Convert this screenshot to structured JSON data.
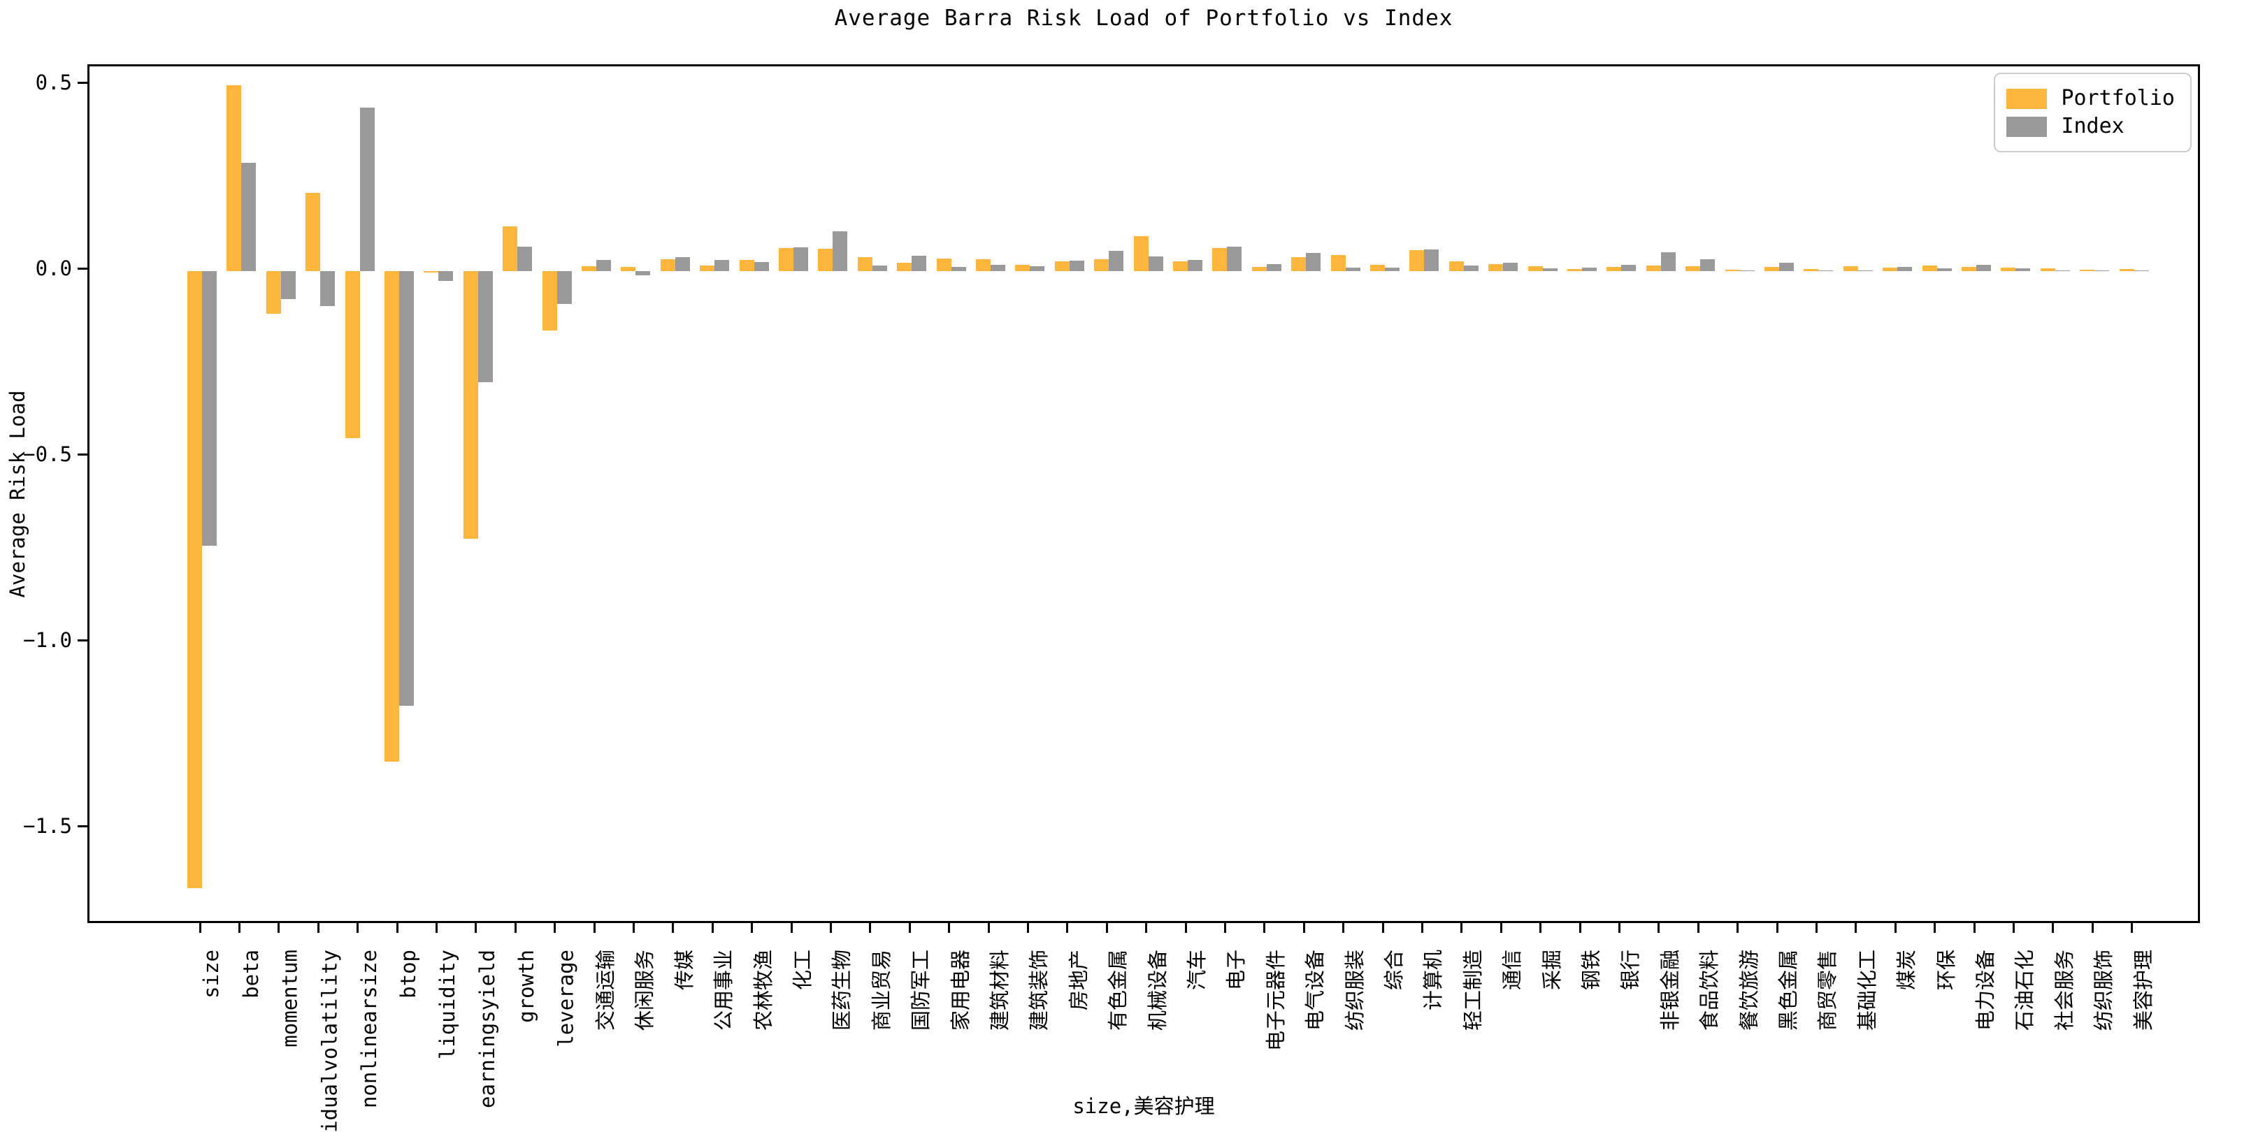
{
  "chart_data": {
    "type": "bar",
    "title": "Average Barra Risk Load of Portfolio vs Index",
    "xlabel": "size,美容护理",
    "ylabel": "Average Risk Load",
    "ylim": [
      -1.76,
      0.55
    ],
    "yticks": [
      0.5,
      0.0,
      -0.5,
      -1.0,
      -1.5
    ],
    "ytick_labels": [
      "0.5",
      "0.0",
      "−0.5",
      "−1.0",
      "−1.5"
    ],
    "grid": "off",
    "legend_position": "upper right",
    "bar_colors": {
      "portfolio": "#fdb53d",
      "index": "#999999"
    },
    "categories": [
      "size",
      "beta",
      "momentum",
      "residualvolatility",
      "nonlinearsize",
      "btop",
      "liquidity",
      "earningsyield",
      "growth",
      "leverage",
      "交通运输",
      "休闲服务",
      "传媒",
      "公用事业",
      "农林牧渔",
      "化工",
      "医药生物",
      "商业贸易",
      "国防军工",
      "家用电器",
      "建筑材料",
      "建筑装饰",
      "房地产",
      "有色金属",
      "机械设备",
      "汽车",
      "电子",
      "电子元器件",
      "电气设备",
      "纺织服装",
      "综合",
      "计算机",
      "轻工制造",
      "通信",
      "采掘",
      "钢铁",
      "银行",
      "非银金融",
      "食品饮料",
      "餐饮旅游",
      "黑色金属",
      "商贸零售",
      "基础化工",
      "煤炭",
      "环保",
      "电力设备",
      "石油石化",
      "社会服务",
      "纺织服饰",
      "美容护理"
    ],
    "series": [
      {
        "name": "Portfolio",
        "values": [
          -1.66,
          0.5,
          -0.115,
          0.21,
          -0.45,
          -1.32,
          -0.005,
          -0.72,
          0.12,
          -0.16,
          0.012,
          0.01,
          0.031,
          0.014,
          0.03,
          0.061,
          0.06,
          0.037,
          0.021,
          0.034,
          0.032,
          0.016,
          0.026,
          0.031,
          0.094,
          0.025,
          0.061,
          0.01,
          0.036,
          0.043,
          0.017,
          0.056,
          0.026,
          0.018,
          0.012,
          0.004,
          0.01,
          0.015,
          0.013,
          0.003,
          0.01,
          0.005,
          0.013,
          0.008,
          0.014,
          0.011,
          0.008,
          0.007,
          0.003,
          0.004
        ]
      },
      {
        "name": "Index",
        "values": [
          -0.74,
          0.29,
          -0.075,
          -0.095,
          0.44,
          -1.17,
          -0.027,
          -0.3,
          0.065,
          -0.09,
          0.029,
          -0.012,
          0.037,
          0.029,
          0.024,
          0.063,
          0.106,
          0.014,
          0.04,
          0.01,
          0.016,
          0.012,
          0.028,
          0.054,
          0.039,
          0.03,
          0.066,
          0.018,
          0.049,
          0.008,
          0.009,
          0.058,
          0.015,
          0.021,
          0.007,
          0.008,
          0.016,
          0.05,
          0.031,
          0.002,
          0.021,
          0.002,
          0.002,
          0.01,
          0.006,
          0.016,
          0.007,
          0.001,
          0.001,
          0.001
        ]
      }
    ]
  },
  "legend": {
    "items": [
      {
        "label": "Portfolio",
        "color": "#fdb53d"
      },
      {
        "label": "Index",
        "color": "#999999"
      }
    ]
  }
}
